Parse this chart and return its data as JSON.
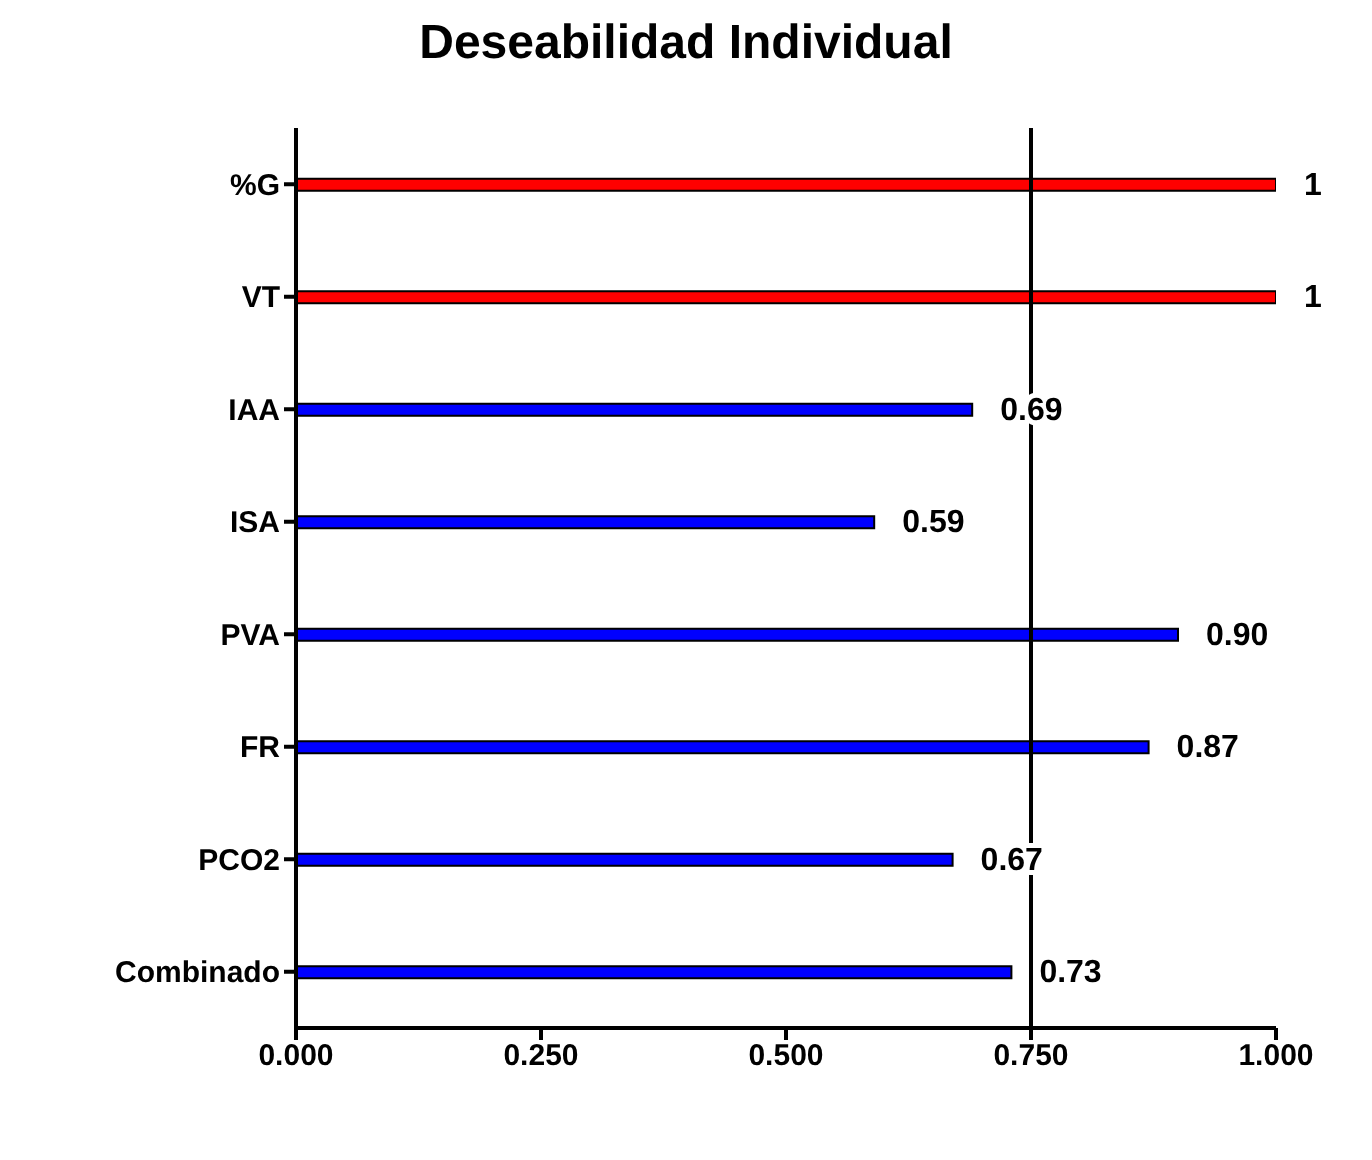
{
  "chart_data": {
    "type": "bar",
    "orientation": "horizontal",
    "title": "Deseabilidad Individual",
    "categories": [
      "%G",
      "VT",
      "IAA",
      "ISA",
      "PVA",
      "FR",
      "PCO2",
      "Combinado"
    ],
    "values": [
      1,
      1,
      0.69,
      0.59,
      0.9,
      0.87,
      0.67,
      0.73
    ],
    "colors": [
      "#ff0000",
      "#ff0000",
      "#0000ff",
      "#0000ff",
      "#0000ff",
      "#0000ff",
      "#0000ff",
      "#0000ff"
    ],
    "value_labels": [
      "1",
      "1",
      "0.69",
      "0.59",
      "0.90",
      "0.87",
      "0.67",
      "0.73"
    ],
    "xlim": [
      0,
      1
    ],
    "xticks": [
      {
        "value": 0,
        "label": "0.000"
      },
      {
        "value": 0.25,
        "label": "0.250"
      },
      {
        "value": 0.5,
        "label": "0.500"
      },
      {
        "value": 0.75,
        "label": "0.750"
      },
      {
        "value": 1,
        "label": "1.000"
      }
    ],
    "ref_lines": [
      {
        "axis": "x",
        "value": 0.75,
        "color": "#000000"
      }
    ],
    "grid": false
  }
}
